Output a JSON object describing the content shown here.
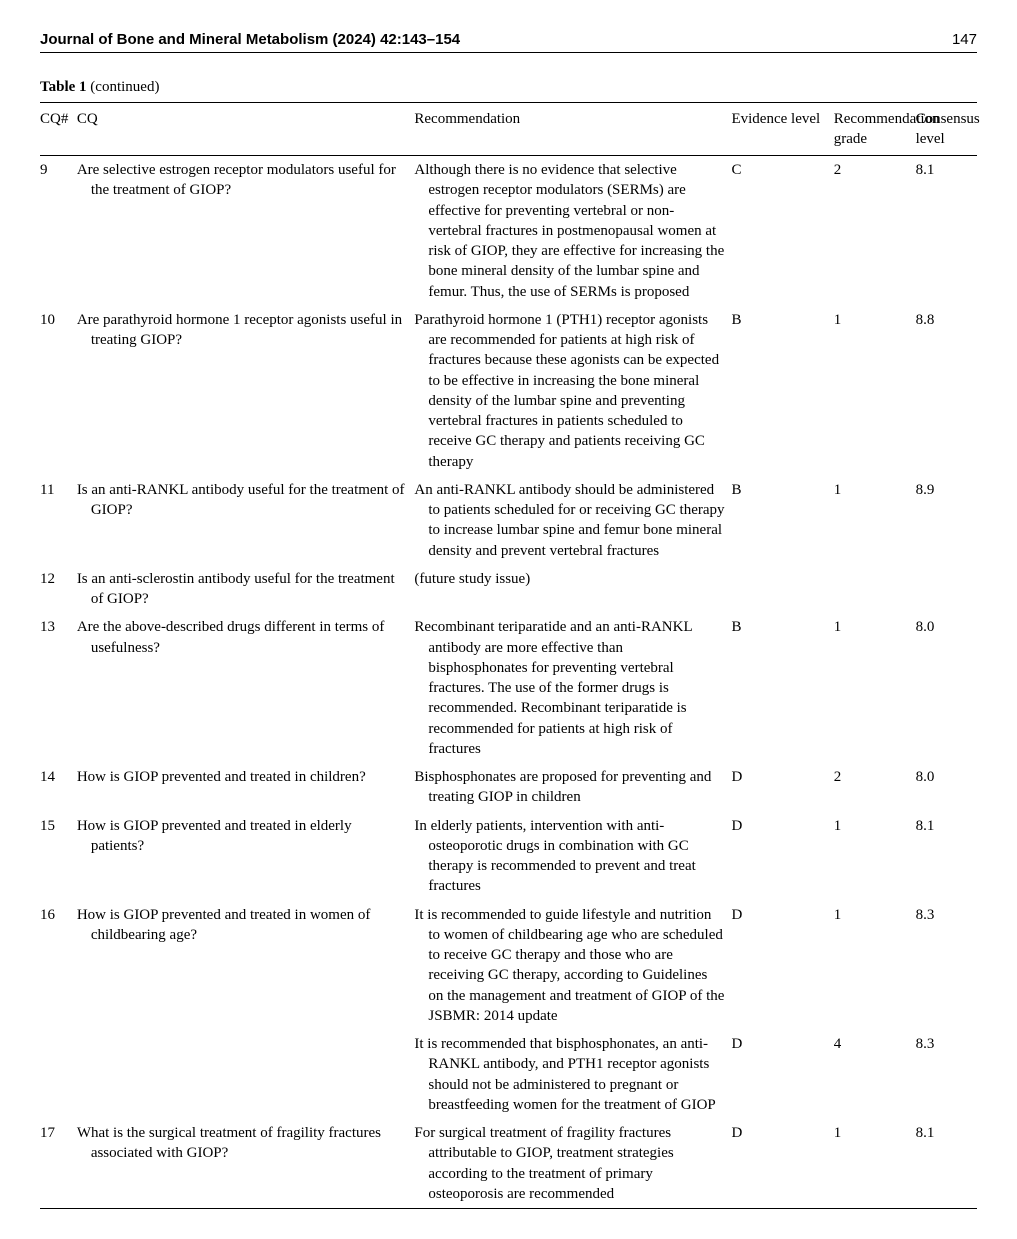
{
  "header": {
    "journal": "Journal of Bone and Mineral Metabolism (2024) 42:143–154",
    "page": "147"
  },
  "table": {
    "caption_label": "Table 1",
    "caption_suffix": "(continued)",
    "columns": {
      "cqnum": "CQ#",
      "cq": "CQ",
      "rec": "Recommendation",
      "ev": "Evidence level",
      "grade": "Recommendation grade",
      "cons": "Consensus level"
    },
    "rows": [
      {
        "cqnum": "9",
        "cq": "Are selective estrogen receptor modulators useful for the treatment of GIOP?",
        "rec": "Although there is no evidence that selective estrogen receptor modulators (SERMs) are effective for preventing vertebral or non-vertebral fractures in postmenopausal women at risk of GIOP, they are effective for increasing the bone mineral density of the lumbar spine and femur. Thus, the use of SERMs is proposed",
        "ev": "C",
        "grade": "2",
        "cons": "8.1"
      },
      {
        "cqnum": "10",
        "cq": "Are parathyroid hormone 1 receptor agonists useful in treating GIOP?",
        "rec": "Parathyroid hormone 1 (PTH1) receptor agonists are recommended for patients at high risk of fractures because these agonists can be expected to be effective in increasing the bone mineral density of the lumbar spine and preventing vertebral fractures in patients scheduled to receive GC therapy and patients receiving GC therapy",
        "ev": "B",
        "grade": "1",
        "cons": "8.8"
      },
      {
        "cqnum": "11",
        "cq": "Is an anti-RANKL antibody useful for the treatment of GIOP?",
        "rec": "An anti-RANKL antibody should be administered to patients scheduled for or receiving GC therapy to increase lumbar spine and femur bone mineral density and prevent vertebral fractures",
        "ev": "B",
        "grade": "1",
        "cons": "8.9"
      },
      {
        "cqnum": "12",
        "cq": "Is an anti-sclerostin antibody useful for the treatment of GIOP?",
        "rec": "(future study issue)",
        "ev": "",
        "grade": "",
        "cons": ""
      },
      {
        "cqnum": "13",
        "cq": "Are the above-described drugs different in terms of usefulness?",
        "rec": "Recombinant teriparatide and an anti-RANKL antibody are more effective than bisphosphonates for preventing vertebral fractures. The use of the former drugs is recommended. Recombinant teriparatide is recommended for patients at high risk of fractures",
        "ev": "B",
        "grade": "1",
        "cons": "8.0"
      },
      {
        "cqnum": "14",
        "cq": "How is GIOP prevented and treated in children?",
        "rec": "Bisphosphonates are proposed for preventing and treating GIOP in children",
        "ev": "D",
        "grade": "2",
        "cons": "8.0"
      },
      {
        "cqnum": "15",
        "cq": "How is GIOP prevented and treated in elderly patients?",
        "rec": "In elderly patients, intervention with anti-osteoporotic drugs in combination with GC therapy is recommended to prevent and treat fractures",
        "ev": "D",
        "grade": "1",
        "cons": "8.1"
      },
      {
        "cqnum": "16",
        "cq": "How is GIOP prevented and treated in women of childbearing age?",
        "rec": "It is recommended to guide lifestyle and nutrition to women of childbearing age who are scheduled to receive GC therapy and those who are receiving GC therapy, according to Guidelines on the management and treatment of GIOP of the JSBMR: 2014 update",
        "ev": "D",
        "grade": "1",
        "cons": "8.3",
        "extra": {
          "rec": "It is recommended that bisphosphonates, an anti-RANKL antibody, and PTH1 receptor agonists should not be administered to pregnant or breastfeeding women for the treatment of GIOP",
          "ev": "D",
          "grade": "4",
          "cons": "8.3"
        }
      },
      {
        "cqnum": "17",
        "cq": "What is the surgical treatment of fragility fractures associated with GIOP?",
        "rec": "For surgical treatment of fragility fractures attributable to GIOP, treatment strategies according to the treatment of primary osteoporosis are recommended",
        "ev": "D",
        "grade": "1",
        "cons": "8.1"
      }
    ]
  }
}
